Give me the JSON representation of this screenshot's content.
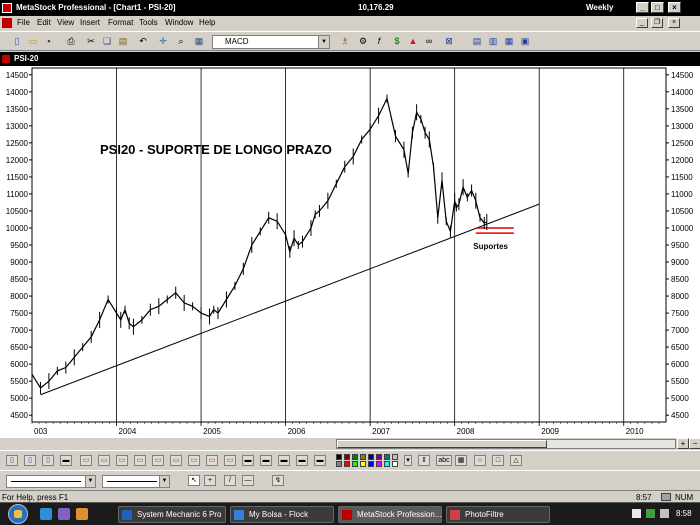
{
  "window": {
    "title": "MetaStock Professional - [Chart1 - PSI-20]",
    "price": "10,176.29",
    "period": "Weekly",
    "min_label": "_",
    "max_label": "□",
    "close_label": "×"
  },
  "menu": {
    "items": [
      "File",
      "Edit",
      "View",
      "Insert",
      "Format",
      "Tools",
      "Window",
      "Help"
    ]
  },
  "toolbar": {
    "indicator_value": "MACD"
  },
  "chart_window": {
    "title": "PSI-20"
  },
  "chart_data": {
    "type": "line",
    "title": "PSI20 - SUPORTE DE LONGO PRAZO",
    "annotation": "Suportes",
    "x_ticks": [
      "003",
      "2004",
      "2005",
      "2006",
      "2007",
      "2008",
      "2009",
      "2010"
    ],
    "y_ticks": [
      4500,
      5000,
      5500,
      6000,
      6500,
      7000,
      7500,
      8000,
      8500,
      9000,
      9500,
      10000,
      10500,
      11000,
      11500,
      12000,
      12500,
      13000,
      13500,
      14000,
      14500
    ],
    "ylim": [
      4300,
      14700
    ],
    "xlim": [
      2003.0,
      2010.5
    ],
    "series": [
      {
        "x": [
          2003.0,
          2003.1,
          2003.2,
          2003.3,
          2003.4,
          2003.5,
          2003.6,
          2003.7,
          2003.8,
          2003.9,
          2004.0,
          2004.05,
          2004.1,
          2004.15,
          2004.2,
          2004.3,
          2004.4,
          2004.5,
          2004.6,
          2004.7,
          2004.8,
          2004.9,
          2005.0,
          2005.1,
          2005.15,
          2005.2,
          2005.3,
          2005.4,
          2005.5,
          2005.6,
          2005.7,
          2005.8,
          2005.9,
          2006.0,
          2006.05,
          2006.1,
          2006.15,
          2006.2,
          2006.3,
          2006.35,
          2006.4,
          2006.5,
          2006.6,
          2006.7,
          2006.8,
          2006.9,
          2007.0,
          2007.1,
          2007.2,
          2007.3,
          2007.4,
          2007.45,
          2007.5,
          2007.55,
          2007.6,
          2007.65,
          2007.7,
          2007.75,
          2007.8,
          2007.85,
          2007.9,
          2007.95,
          2008.0,
          2008.02,
          2008.05,
          2008.1,
          2008.15,
          2008.2,
          2008.25,
          2008.3,
          2008.35,
          2008.38
        ],
        "values": [
          5700,
          5300,
          5500,
          5800,
          5900,
          6200,
          6500,
          6800,
          7300,
          7900,
          7500,
          7300,
          7600,
          7200,
          7100,
          7300,
          7600,
          7700,
          7900,
          8100,
          7800,
          7700,
          7500,
          7400,
          7600,
          7500,
          7900,
          8300,
          8800,
          9500,
          9900,
          10300,
          10200,
          9800,
          9300,
          9700,
          9500,
          9600,
          10000,
          10400,
          10500,
          10800,
          11300,
          11800,
          12100,
          12600,
          12900,
          13300,
          13800,
          12700,
          12300,
          11600,
          12800,
          13400,
          13200,
          12800,
          12600,
          11800,
          10300,
          11400,
          10200,
          9900,
          10800,
          10600,
          10700,
          11200,
          10900,
          11100,
          10800,
          10300,
          10150,
          10176
        ]
      }
    ],
    "trendline": {
      "x": [
        2003.1,
        2009.0
      ],
      "values": [
        5100,
        10700
      ]
    },
    "support_lines": [
      10000,
      9850
    ]
  },
  "bottom_toolbar": {
    "buttons": [
      "↖",
      "+",
      "/",
      "—",
      "↯"
    ],
    "text_tool": "abc"
  },
  "status": {
    "help": "For Help, press F1",
    "time": "8:57",
    "num": "NUM"
  },
  "taskbar": {
    "tasks": [
      "System Mechanic 6 Pro",
      "My Bolsa - Flock",
      "MetaStock Profession...",
      "PhotoFiltre"
    ],
    "clock": "8:58"
  },
  "colors": {
    "title_bg": "#000000",
    "chart_line": "#000000",
    "support": "#e00000",
    "taskbar": "#1b1b1b"
  }
}
